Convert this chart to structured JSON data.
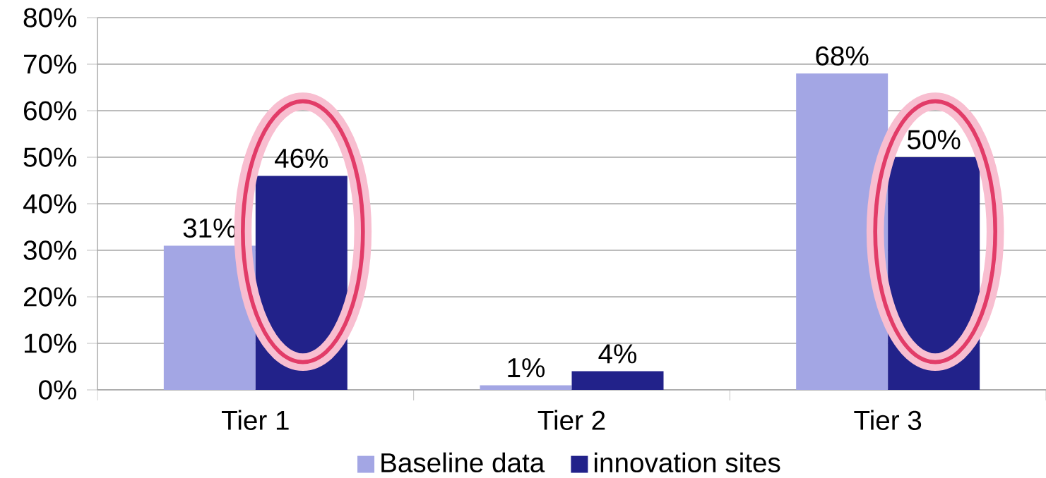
{
  "chart_data": {
    "type": "bar",
    "categories": [
      "Tier 1",
      "Tier 2",
      "Tier 3"
    ],
    "series": [
      {
        "name": "Baseline data",
        "color": "#a3a6e4",
        "values": [
          31,
          1,
          68
        ],
        "value_labels": [
          "31%",
          "1%",
          "68%"
        ]
      },
      {
        "name": "innovation sites",
        "color": "#22228a",
        "values": [
          46,
          4,
          50
        ],
        "value_labels": [
          "46%",
          "4%",
          "50%"
        ]
      }
    ],
    "ylim": [
      0,
      80
    ],
    "yticks": [
      {
        "value": 0,
        "label": "0%"
      },
      {
        "value": 10,
        "label": "10%"
      },
      {
        "value": 20,
        "label": "20%"
      },
      {
        "value": 30,
        "label": "30%"
      },
      {
        "value": 40,
        "label": "40%"
      },
      {
        "value": 50,
        "label": "50%"
      },
      {
        "value": 60,
        "label": "60%"
      },
      {
        "value": 70,
        "label": "70%"
      },
      {
        "value": 80,
        "label": "80%"
      }
    ],
    "grid": "y",
    "legend": "bottom"
  }
}
